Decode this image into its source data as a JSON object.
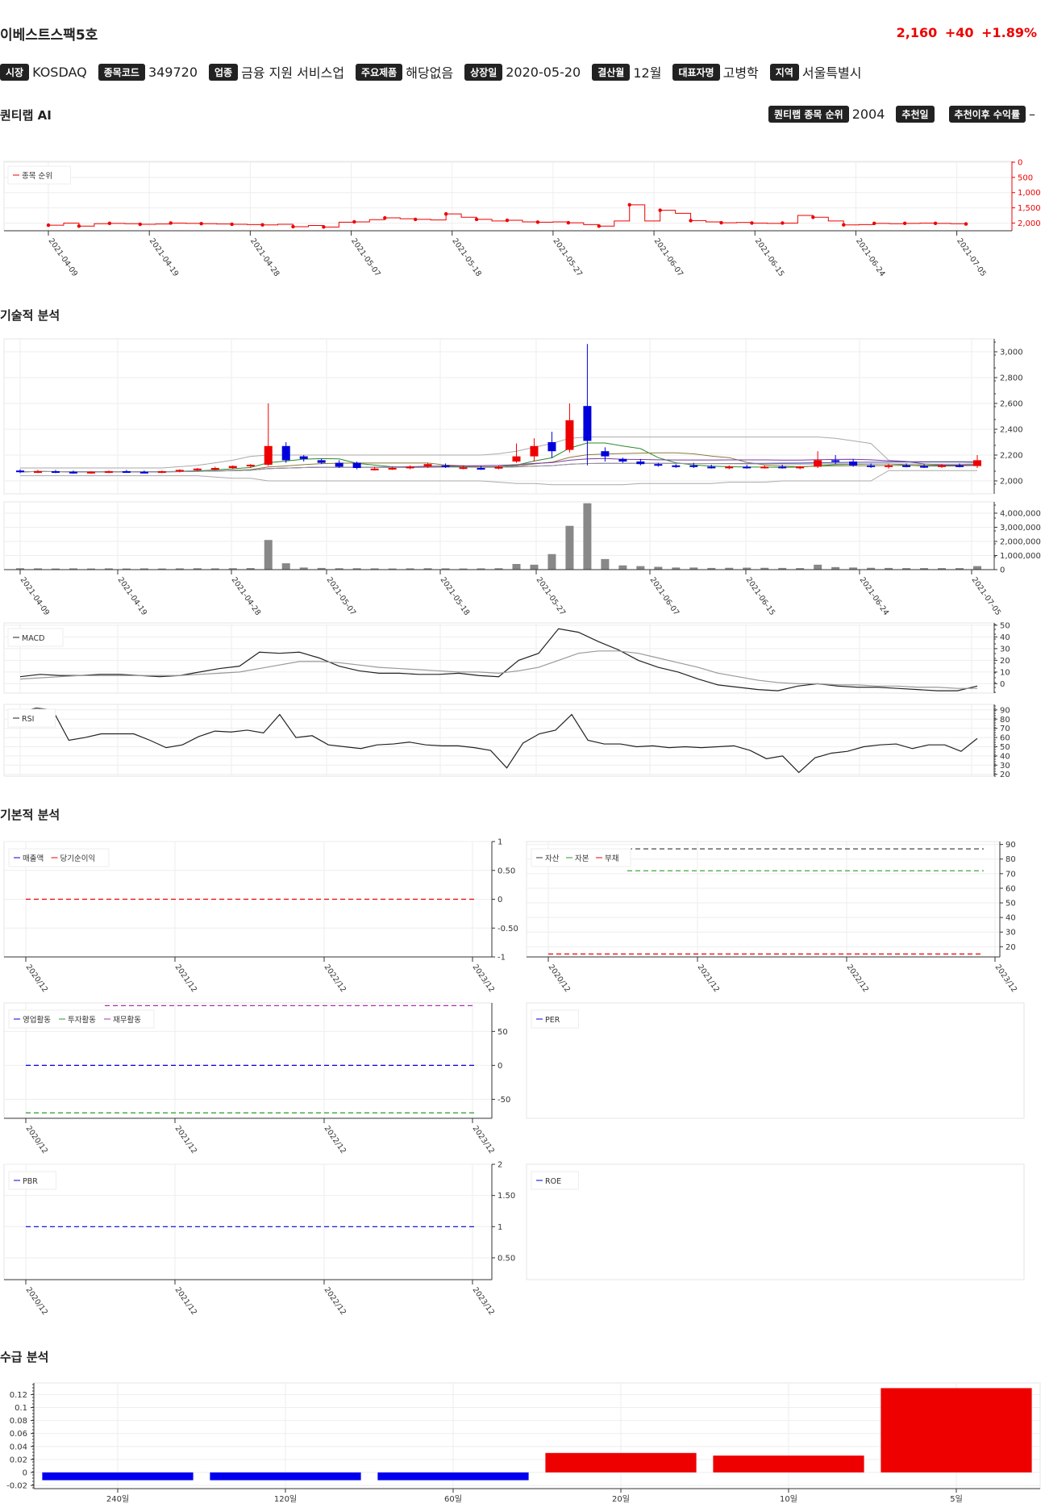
{
  "header": {
    "name": "이베스트스팩5호",
    "price": "2,160",
    "change": "+40",
    "change_pct": "+1.89%",
    "accent_color": "#ee0000"
  },
  "meta": [
    {
      "label": "시장",
      "value": "KOSDAQ"
    },
    {
      "label": "종목코드",
      "value": "349720"
    },
    {
      "label": "업종",
      "value": "금융 지원 서비스업"
    },
    {
      "label": "주요제품",
      "value": "해당없음"
    },
    {
      "label": "상장일",
      "value": "2020-05-20"
    },
    {
      "label": "결산월",
      "value": "12월"
    },
    {
      "label": "대표자명",
      "value": "고병학"
    },
    {
      "label": "지역",
      "value": "서울특별시"
    }
  ],
  "ai": {
    "section_title": "퀀티랩 AI",
    "rank_label": "퀀티랩 종목 순위",
    "rank_value": "2004",
    "rec_date_label": "추천일",
    "rec_date_value": "",
    "return_label": "추천이후 수익률",
    "return_value": "–"
  },
  "sections": {
    "technical": "기술적 분석",
    "fundamental": "기본적 분석",
    "supply": "수급 분석"
  },
  "chart_data": [
    {
      "type": "line",
      "legend": [
        "종목 순위"
      ],
      "x_ticks": [
        "2021-04-09",
        "2021-04-19",
        "2021-04-28",
        "2021-05-07",
        "2021-05-18",
        "2021-05-27",
        "2021-06-07",
        "2021-06-15",
        "2021-06-24",
        "2021-07-05"
      ],
      "y_ticks": [
        "0",
        "500",
        "1,000",
        "1,500",
        "2,000"
      ],
      "ylim": [
        0,
        2200
      ],
      "inverted": true,
      "series": [
        {
          "name": "종목 순위",
          "color": "#ee0000",
          "values": [
            2070,
            2000,
            2100,
            2020,
            2010,
            2020,
            2040,
            2030,
            2000,
            2010,
            2020,
            2030,
            2040,
            2050,
            2060,
            2040,
            2120,
            2080,
            2130,
            1970,
            1960,
            1890,
            1830,
            1860,
            1880,
            1900,
            1700,
            1810,
            1880,
            1930,
            1910,
            1960,
            1970,
            1960,
            1990,
            2050,
            2100,
            1930,
            1400,
            1930,
            1580,
            1680,
            1920,
            1960,
            1990,
            1980,
            2000,
            2010,
            2000,
            1750,
            1810,
            1930,
            2060,
            2050,
            2010,
            2020,
            2010,
            2000,
            2010,
            2020,
            2030
          ]
        }
      ]
    },
    {
      "type": "candlestick",
      "x_ticks": [
        "2021-04-09",
        "2021-04-19",
        "2021-04-28",
        "2021-05-07",
        "2021-05-18",
        "2021-05-27",
        "2021-06-07",
        "2021-06-15",
        "2021-06-24",
        "2021-07-05"
      ],
      "y_ticks": [
        "2,000",
        "2,200",
        "2,400",
        "2,600",
        "2,800",
        "3,000"
      ],
      "ylim": [
        1900,
        3100
      ],
      "up_color": "#ee0000",
      "down_color": "#0000dd",
      "candles": [
        [
          2080,
          2090,
          2060,
          2070
        ],
        [
          2070,
          2085,
          2060,
          2075
        ],
        [
          2075,
          2085,
          2060,
          2070
        ],
        [
          2070,
          2080,
          2055,
          2065
        ],
        [
          2065,
          2075,
          2055,
          2070
        ],
        [
          2070,
          2080,
          2060,
          2075
        ],
        [
          2075,
          2085,
          2065,
          2070
        ],
        [
          2070,
          2080,
          2060,
          2065
        ],
        [
          2065,
          2080,
          2060,
          2075
        ],
        [
          2075,
          2090,
          2065,
          2085
        ],
        [
          2085,
          2100,
          2075,
          2095
        ],
        [
          2095,
          2110,
          2085,
          2100
        ],
        [
          2100,
          2120,
          2090,
          2115
        ],
        [
          2115,
          2130,
          2100,
          2125
        ],
        [
          2125,
          2600,
          2115,
          2270
        ],
        [
          2270,
          2300,
          2140,
          2160
        ],
        [
          2190,
          2200,
          2150,
          2170
        ],
        [
          2160,
          2170,
          2130,
          2140
        ],
        [
          2140,
          2160,
          2100,
          2110
        ],
        [
          2140,
          2150,
          2090,
          2100
        ],
        [
          2090,
          2110,
          2080,
          2095
        ],
        [
          2095,
          2110,
          2085,
          2100
        ],
        [
          2100,
          2120,
          2090,
          2110
        ],
        [
          2110,
          2140,
          2100,
          2130
        ],
        [
          2120,
          2135,
          2100,
          2110
        ],
        [
          2100,
          2120,
          2090,
          2105
        ],
        [
          2100,
          2115,
          2085,
          2095
        ],
        [
          2095,
          2120,
          2090,
          2110
        ],
        [
          2150,
          2290,
          2140,
          2190
        ],
        [
          2190,
          2330,
          2150,
          2270
        ],
        [
          2300,
          2380,
          2180,
          2230
        ],
        [
          2240,
          2600,
          2220,
          2470
        ],
        [
          2580,
          3060,
          2120,
          2310
        ],
        [
          2230,
          2260,
          2150,
          2190
        ],
        [
          2170,
          2180,
          2140,
          2150
        ],
        [
          2150,
          2170,
          2120,
          2130
        ],
        [
          2130,
          2140,
          2110,
          2120
        ],
        [
          2120,
          2130,
          2100,
          2110
        ],
        [
          2120,
          2140,
          2100,
          2110
        ],
        [
          2110,
          2125,
          2095,
          2100
        ],
        [
          2100,
          2120,
          2090,
          2110
        ],
        [
          2110,
          2125,
          2095,
          2105
        ],
        [
          2105,
          2120,
          2095,
          2110
        ],
        [
          2110,
          2125,
          2095,
          2100
        ],
        [
          2100,
          2115,
          2090,
          2110
        ],
        [
          2110,
          2230,
          2100,
          2160
        ],
        [
          2160,
          2200,
          2130,
          2150
        ],
        [
          2150,
          2170,
          2110,
          2120
        ],
        [
          2120,
          2135,
          2100,
          2110
        ],
        [
          2110,
          2130,
          2095,
          2120
        ],
        [
          2120,
          2135,
          2105,
          2115
        ],
        [
          2115,
          2130,
          2100,
          2110
        ],
        [
          2110,
          2130,
          2100,
          2120
        ],
        [
          2120,
          2135,
          2105,
          2115
        ],
        [
          2115,
          2200,
          2100,
          2160
        ]
      ],
      "ma_colors": [
        "#2a8a2a",
        "#8b7a3a",
        "#7a3aa0",
        "#4a4ab0",
        "#999999"
      ],
      "bollinger_upper": [
        2100,
        2100,
        2100,
        2100,
        2100,
        2100,
        2100,
        2100,
        2100,
        2110,
        2120,
        2140,
        2160,
        2190,
        2200,
        2200,
        2200,
        2200,
        2200,
        2200,
        2200,
        2200,
        2200,
        2200,
        2200,
        2200,
        2200,
        2210,
        2230,
        2260,
        2290,
        2330,
        2340,
        2340,
        2340,
        2340,
        2340,
        2340,
        2340,
        2340,
        2340,
        2340,
        2340,
        2340,
        2340,
        2340,
        2330,
        2310,
        2290,
        2160,
        2150,
        2150,
        2150,
        2150,
        2150
      ],
      "bollinger_lower": [
        2040,
        2040,
        2040,
        2040,
        2040,
        2040,
        2040,
        2040,
        2040,
        2040,
        2040,
        2030,
        2020,
        2020,
        2000,
        2000,
        2000,
        2000,
        2000,
        2000,
        2000,
        2000,
        2000,
        2000,
        2000,
        2000,
        2000,
        1990,
        1980,
        1980,
        1970,
        1970,
        1970,
        1970,
        1970,
        1980,
        1980,
        1980,
        1980,
        1980,
        1990,
        1990,
        1990,
        2000,
        2000,
        2000,
        2000,
        2000,
        2000,
        2080,
        2080,
        2080,
        2080,
        2080,
        2080
      ]
    },
    {
      "type": "bar",
      "y_ticks": [
        "0",
        "1,000,000",
        "2,000,000",
        "3,000,000",
        "4,000,000"
      ],
      "ylim": [
        0,
        4800000
      ],
      "color": "#888888",
      "values": [
        100000,
        90000,
        80000,
        90000,
        80000,
        90000,
        80000,
        90000,
        80000,
        90000,
        100000,
        90000,
        100000,
        110000,
        2100000,
        450000,
        150000,
        120000,
        100000,
        100000,
        90000,
        80000,
        90000,
        100000,
        90000,
        80000,
        90000,
        100000,
        400000,
        350000,
        1100000,
        3100000,
        4700000,
        750000,
        300000,
        250000,
        200000,
        150000,
        150000,
        120000,
        130000,
        140000,
        130000,
        120000,
        110000,
        350000,
        180000,
        150000,
        130000,
        120000,
        110000,
        110000,
        110000,
        110000,
        250000
      ]
    },
    {
      "type": "line",
      "legend": [
        "MACD"
      ],
      "y_ticks": [
        "0",
        "10",
        "20",
        "30",
        "40",
        "50"
      ],
      "ylim": [
        -8,
        52
      ],
      "series": [
        {
          "name": "MACD",
          "color": "#222222",
          "values": [
            6,
            8,
            7,
            7,
            8,
            8,
            7,
            6,
            7,
            10,
            13,
            15,
            27,
            26,
            27,
            22,
            15,
            11,
            9,
            9,
            8,
            8,
            9,
            7,
            6,
            20,
            26,
            47,
            44,
            36,
            29,
            20,
            14,
            10,
            4,
            -1,
            -3,
            -5,
            -6,
            -2,
            0,
            -2,
            -3,
            -3,
            -4,
            -5,
            -6,
            -6,
            -2
          ]
        },
        {
          "name": "signal",
          "color": "#999999",
          "values": [
            4,
            5,
            6,
            7,
            7,
            7,
            7,
            7,
            7,
            8,
            9,
            10,
            13,
            16,
            19,
            19,
            18,
            16,
            14,
            13,
            12,
            11,
            10,
            10,
            9,
            11,
            14,
            20,
            26,
            28,
            28,
            26,
            22,
            18,
            14,
            9,
            6,
            3,
            1,
            0,
            0,
            -1,
            -1,
            -2,
            -2,
            -3,
            -3,
            -4,
            -4
          ]
        }
      ]
    },
    {
      "type": "line",
      "legend": [
        "RSI"
      ],
      "y_ticks": [
        "20",
        "30",
        "40",
        "50",
        "60",
        "70",
        "80",
        "90"
      ],
      "ylim": [
        18,
        96
      ],
      "series": [
        {
          "name": "RSI",
          "color": "#222222",
          "values": [
            88,
            92,
            90,
            57,
            60,
            64,
            64,
            64,
            57,
            49,
            52,
            61,
            67,
            66,
            68,
            65,
            85,
            60,
            62,
            52,
            50,
            48,
            52,
            53,
            55,
            52,
            51,
            51,
            49,
            46,
            27,
            54,
            64,
            68,
            85,
            57,
            53,
            53,
            50,
            51,
            49,
            50,
            49,
            50,
            51,
            46,
            37,
            40,
            22,
            38,
            43,
            45,
            50,
            52,
            53,
            48,
            52,
            52,
            45,
            59
          ]
        }
      ]
    },
    {
      "type": "line",
      "legend": [
        "매출액",
        "당기순이익"
      ],
      "x_ticks": [
        "2020/12",
        "2021/12",
        "2022/12",
        "2023/12"
      ],
      "y_ticks": [
        "1",
        "0.50",
        "0",
        "-0.50",
        "-1"
      ],
      "ylim": [
        -1,
        1
      ],
      "series": [
        {
          "name": "당기순이익",
          "color": "#ee0000",
          "values": [
            0,
            0,
            0,
            0
          ]
        }
      ]
    },
    {
      "type": "line",
      "legend": [
        "자산",
        "자본",
        "부채"
      ],
      "x_ticks": [
        "2020/12",
        "2021/12",
        "2022/12",
        "2023/12"
      ],
      "y_ticks": [
        "20",
        "30",
        "40",
        "50",
        "60",
        "70",
        "80",
        "90"
      ],
      "ylim": [
        13,
        92
      ],
      "series": [
        {
          "name": "자산",
          "color": "#333333",
          "values": [
            87,
            87,
            87,
            87
          ]
        },
        {
          "name": "자본",
          "color": "#2a9a2a",
          "values": [
            72,
            72,
            72,
            72
          ]
        },
        {
          "name": "부채",
          "color": "#ee0000",
          "values": [
            15,
            15,
            15,
            15
          ]
        }
      ]
    },
    {
      "type": "line",
      "legend": [
        "영업활동",
        "투자활동",
        "재무활동"
      ],
      "x_ticks": [
        "2020/12",
        "2021/12",
        "2022/12",
        "2023/12"
      ],
      "y_ticks": [
        "50",
        "0",
        "-50"
      ],
      "ylim": [
        -78,
        92
      ],
      "series": [
        {
          "name": "영업활동",
          "color": "#0000dd",
          "values": [
            0,
            0,
            0,
            0
          ]
        },
        {
          "name": "투자활동",
          "color": "#2a9a2a",
          "values": [
            -70,
            -70,
            -70,
            -70
          ]
        },
        {
          "name": "재무활동",
          "color": "#aa33aa",
          "values": [
            88,
            88,
            88,
            88
          ]
        }
      ]
    },
    {
      "type": "line",
      "legend": [
        "PER"
      ],
      "series": []
    },
    {
      "type": "line",
      "legend": [
        "PBR"
      ],
      "x_ticks": [
        "2020/12",
        "2021/12",
        "2022/12",
        "2023/12"
      ],
      "y_ticks": [
        "2",
        "1.50",
        "1",
        "0.50"
      ],
      "ylim": [
        0.15,
        2
      ],
      "series": [
        {
          "name": "PBR",
          "color": "#0000dd",
          "values": [
            1,
            1,
            1,
            1
          ]
        }
      ]
    },
    {
      "type": "line",
      "legend": [
        "ROE"
      ],
      "series": []
    },
    {
      "type": "bar",
      "categories": [
        "240일",
        "120일",
        "60일",
        "20일",
        "10일",
        "5일"
      ],
      "values": [
        -0.012,
        -0.012,
        -0.012,
        0.03,
        0.026,
        0.13
      ],
      "y_ticks": [
        "-0.02",
        "0",
        "0.02",
        "0.04",
        "0.06",
        "0.08",
        "0.1",
        "0.12"
      ],
      "ylim": [
        -0.025,
        0.138
      ],
      "pos_color": "#ee0000",
      "neg_color": "#0000ee"
    }
  ]
}
